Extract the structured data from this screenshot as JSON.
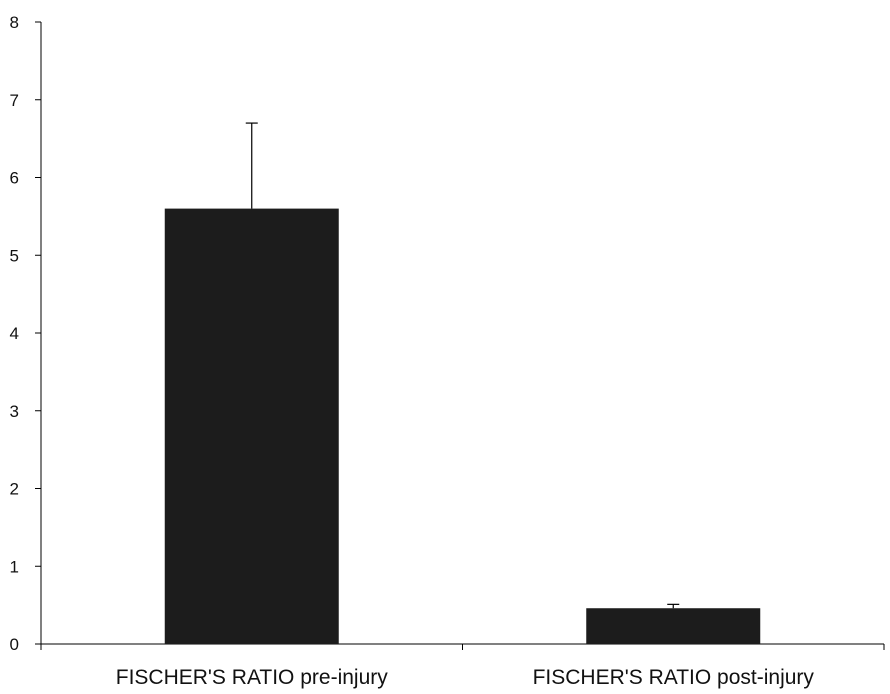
{
  "chart_data": {
    "type": "bar",
    "title": "",
    "xlabel": "",
    "ylabel": "",
    "categories": [
      "FISCHER'S RATIO pre-injury",
      "FISCHER'S RATIO post-injury"
    ],
    "values": [
      5.6,
      0.46
    ],
    "error_upper": [
      6.7,
      0.51
    ],
    "ylim": [
      0,
      8
    ],
    "yticks": [
      0,
      1,
      2,
      3,
      4,
      5,
      6,
      7,
      8
    ],
    "ytick_labels": [
      "0",
      "1",
      "2",
      "3",
      "4",
      "5",
      "6",
      "7",
      "8"
    ],
    "grid": false,
    "legend": "none",
    "colors": {
      "bar": "#1c1c1c",
      "axis": "#000000",
      "text": "#111111"
    }
  }
}
